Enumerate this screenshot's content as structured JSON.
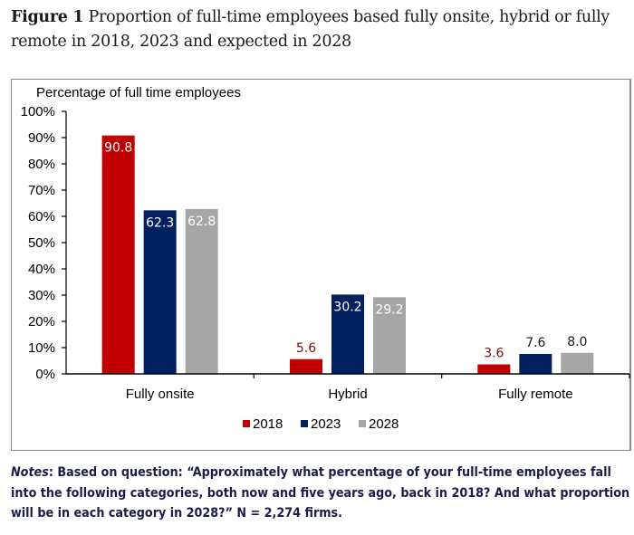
{
  "figure": {
    "label": "Figure 1",
    "title": "Proportion of full-time employees based fully onsite, hybrid or fully remote in 2018, 2023 and expected in 2028"
  },
  "chart_data": {
    "type": "bar",
    "title": "",
    "ylabel": "Percentage of full time employees",
    "xlabel": "",
    "ylim": [
      0,
      100
    ],
    "yticks": [
      "0%",
      "10%",
      "20%",
      "30%",
      "40%",
      "50%",
      "60%",
      "70%",
      "80%",
      "90%",
      "100%"
    ],
    "categories": [
      "Fully onsite",
      "Hybrid",
      "Fully remote"
    ],
    "series": [
      {
        "name": "2018",
        "color": "#c00000",
        "values": [
          90.8,
          5.6,
          3.6
        ],
        "labels": [
          "90.8",
          "5.6",
          "3.6"
        ]
      },
      {
        "name": "2023",
        "color": "#002060",
        "values": [
          62.3,
          30.2,
          7.6
        ],
        "labels": [
          "62.3",
          "30.2",
          "7.6"
        ]
      },
      {
        "name": "2028",
        "color": "#a6a6a6",
        "values": [
          62.8,
          29.2,
          8.0
        ],
        "labels": [
          "62.8",
          "29.2",
          "8.0"
        ]
      }
    ],
    "legend": "bottom-center",
    "grid": false
  },
  "notes": {
    "label": "Notes",
    "text": ": Based on question: “Approximately what percentage of your full-time employees fall into the following categories, both now and five years ago, back in 2018? And what proportion will be in each category in 2028?” N = 2,274 firms."
  }
}
